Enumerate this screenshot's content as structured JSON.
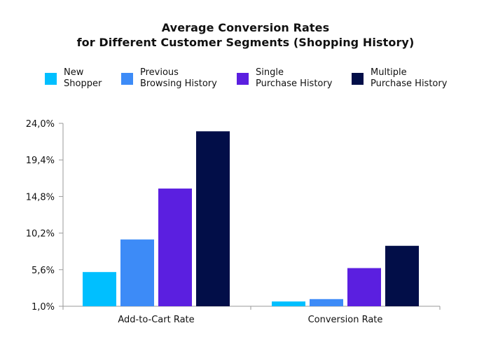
{
  "chart_data": {
    "type": "bar",
    "title_line1": "Average Conversion Rates",
    "title_line2": "for Different Customer Segments (Shopping History)",
    "xlabel": "",
    "ylabel": "",
    "categories": [
      "Add-to-Cart Rate",
      "Conversion Rate"
    ],
    "series": [
      {
        "name": "New\nShopper",
        "color": "#00bfff",
        "values": [
          5.3,
          1.6
        ]
      },
      {
        "name": "Previous\nBrowsing History",
        "color": "#3d8bf7",
        "values": [
          9.4,
          1.9
        ]
      },
      {
        "name": "Single\nPurchase History",
        "color": "#5b1fe0",
        "values": [
          15.8,
          5.8
        ]
      },
      {
        "name": "Multiple\nPurchase History",
        "color": "#020e48",
        "values": [
          23.0,
          8.6
        ]
      }
    ],
    "ylim": [
      1.0,
      24.0
    ],
    "yticks": [
      1.0,
      5.6,
      10.2,
      14.8,
      19.4,
      24.0
    ],
    "ytick_labels": [
      "1,0%",
      "5,6%",
      "10,2%",
      "14,8%",
      "19,4%",
      "24,0%"
    ],
    "grid": false,
    "legend_position": "top"
  }
}
